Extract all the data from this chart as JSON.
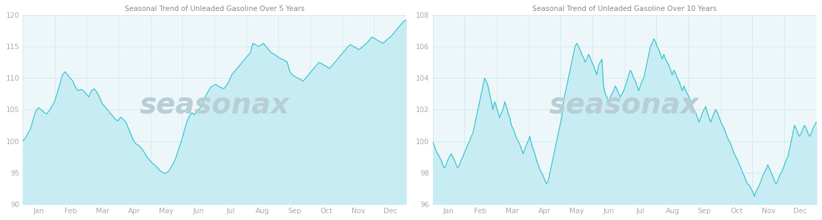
{
  "title_5yr": "Seasonal Trend of Unleaded Gasoline Over 5 Years",
  "title_10yr": "Seasonal Trend of Unleaded Gasoline Over 10 Years",
  "watermark": "seasonax",
  "months": [
    "Jan",
    "Feb",
    "Mar",
    "Apr",
    "May",
    "Jun",
    "Jul",
    "Aug",
    "Sep",
    "Oct",
    "Nov",
    "Dec"
  ],
  "ylim_5yr": [
    90,
    120
  ],
  "ylim_10yr": [
    96,
    108
  ],
  "yticks_5yr": [
    90,
    95,
    100,
    105,
    110,
    115,
    120
  ],
  "yticks_10yr": [
    96,
    98,
    100,
    102,
    104,
    106,
    108
  ],
  "line_color": "#35c4cc",
  "fill_color": "#c8ecf4",
  "bg_color": "#edf7fa",
  "grid_color": "#cde8f0",
  "watermark_color": "#b8ced5",
  "title_color": "#888888",
  "tick_color": "#aaaaaa",
  "outer_bg": "#ffffff",
  "data_5yr": [
    100.0,
    100.5,
    101.2,
    102.0,
    103.5,
    104.8,
    105.3,
    105.0,
    104.6,
    104.3,
    104.8,
    105.5,
    106.2,
    107.5,
    109.0,
    110.5,
    111.0,
    110.5,
    110.0,
    109.5,
    108.5,
    108.0,
    108.2,
    108.0,
    107.5,
    107.0,
    108.0,
    108.3,
    107.8,
    107.0,
    106.0,
    105.5,
    105.0,
    104.5,
    104.0,
    103.5,
    103.2,
    103.8,
    103.5,
    103.0,
    102.0,
    101.0,
    100.0,
    99.5,
    99.3,
    98.8,
    98.2,
    97.5,
    97.0,
    96.5,
    96.2,
    95.8,
    95.3,
    95.0,
    94.9,
    95.2,
    95.8,
    96.5,
    97.5,
    98.8,
    100.0,
    101.5,
    103.0,
    104.0,
    104.5,
    104.2,
    104.8,
    105.2,
    106.0,
    107.0,
    107.8,
    108.5,
    108.8,
    109.0,
    108.7,
    108.5,
    108.3,
    108.8,
    109.5,
    110.5,
    111.0,
    111.5,
    112.0,
    112.5,
    113.0,
    113.5,
    114.0,
    115.5,
    115.3,
    115.0,
    115.2,
    115.5,
    115.0,
    114.5,
    114.0,
    113.8,
    113.5,
    113.2,
    113.0,
    112.8,
    112.5,
    111.0,
    110.5,
    110.2,
    110.0,
    109.8,
    109.5,
    110.0,
    110.5,
    111.0,
    111.5,
    112.0,
    112.5,
    112.3,
    112.0,
    111.8,
    111.5,
    112.0,
    112.5,
    113.0,
    113.5,
    114.0,
    114.5,
    115.0,
    115.3,
    115.0,
    114.8,
    114.5,
    114.8,
    115.2,
    115.5,
    116.0,
    116.5,
    116.3,
    116.0,
    115.8,
    115.5,
    115.8,
    116.2,
    116.5,
    117.0,
    117.5,
    118.0,
    118.5,
    119.0,
    119.2
  ],
  "data_10yr": [
    100.0,
    99.7,
    99.4,
    99.2,
    99.0,
    98.8,
    98.5,
    98.3,
    98.5,
    98.8,
    99.0,
    99.2,
    99.0,
    98.8,
    98.5,
    98.3,
    98.5,
    98.8,
    99.0,
    99.3,
    99.5,
    99.8,
    100.0,
    100.3,
    100.5,
    101.0,
    101.5,
    102.0,
    102.5,
    103.0,
    103.5,
    104.0,
    103.8,
    103.5,
    103.0,
    102.5,
    102.0,
    102.5,
    102.2,
    101.8,
    101.5,
    101.8,
    102.0,
    102.5,
    102.2,
    101.8,
    101.5,
    101.0,
    100.8,
    100.5,
    100.2,
    100.0,
    99.8,
    99.5,
    99.2,
    99.5,
    99.8,
    100.0,
    100.3,
    99.8,
    99.5,
    99.2,
    98.8,
    98.5,
    98.2,
    98.0,
    97.8,
    97.5,
    97.3,
    97.5,
    98.0,
    98.5,
    99.0,
    99.5,
    100.0,
    100.5,
    101.0,
    101.5,
    102.5,
    103.0,
    103.5,
    104.0,
    104.5,
    105.0,
    105.5,
    106.0,
    106.2,
    106.0,
    105.8,
    105.5,
    105.3,
    105.0,
    105.2,
    105.5,
    105.3,
    105.0,
    104.8,
    104.5,
    104.2,
    104.8,
    105.0,
    105.2,
    103.5,
    103.0,
    102.8,
    102.5,
    102.8,
    103.0,
    103.2,
    103.5,
    103.3,
    103.0,
    102.8,
    103.0,
    103.2,
    103.5,
    103.8,
    104.2,
    104.5,
    104.3,
    104.0,
    103.8,
    103.5,
    103.2,
    103.5,
    103.8,
    104.0,
    104.5,
    105.0,
    105.5,
    106.0,
    106.2,
    106.5,
    106.3,
    106.0,
    105.8,
    105.5,
    105.2,
    105.5,
    105.2,
    105.0,
    104.8,
    104.5,
    104.2,
    104.5,
    104.3,
    104.0,
    103.8,
    103.5,
    103.2,
    103.5,
    103.2,
    103.0,
    102.8,
    102.5,
    102.2,
    102.0,
    101.8,
    101.5,
    101.2,
    101.5,
    101.8,
    102.0,
    102.2,
    101.8,
    101.5,
    101.2,
    101.5,
    101.8,
    102.0,
    101.8,
    101.5,
    101.2,
    101.0,
    100.8,
    100.5,
    100.2,
    100.0,
    99.8,
    99.5,
    99.2,
    99.0,
    98.8,
    98.5,
    98.3,
    98.0,
    97.8,
    97.5,
    97.3,
    97.2,
    97.0,
    96.8,
    96.5,
    96.8,
    97.0,
    97.2,
    97.5,
    97.8,
    98.0,
    98.2,
    98.5,
    98.3,
    98.0,
    97.8,
    97.5,
    97.3,
    97.5,
    97.8,
    98.0,
    98.2,
    98.5,
    98.8,
    99.0,
    99.5,
    100.0,
    100.5,
    101.0,
    100.8,
    100.5,
    100.3,
    100.5,
    100.8,
    101.0,
    100.8,
    100.5,
    100.3,
    100.5,
    100.8,
    101.0,
    101.2
  ]
}
